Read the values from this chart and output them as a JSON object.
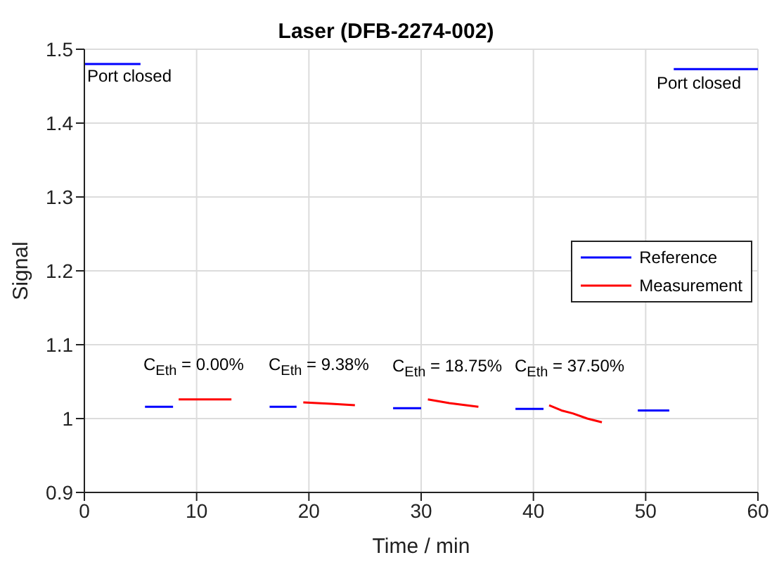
{
  "chart_data": {
    "type": "line",
    "title": "Laser (DFB-2274-002)",
    "xlabel": "Time / min",
    "ylabel": "Signal",
    "xlim": [
      0,
      60
    ],
    "xticks": [
      0,
      10,
      20,
      30,
      40,
      50,
      60
    ],
    "ylim": [
      0.9,
      1.5
    ],
    "yticks": [
      0.9,
      1,
      1.1,
      1.2,
      1.3,
      1.4,
      1.5
    ],
    "grid": true,
    "legend": "right",
    "marker": "none",
    "line_style": "solid",
    "series": [
      {
        "name": "Reference",
        "color": "#0000ff",
        "x": [
          0,
          5,
          5.2,
          5.4,
          7.9,
          12,
          16.5,
          18.9,
          23,
          27.5,
          30,
          34,
          38.4,
          40.9,
          45,
          49.3,
          52.1,
          52.3,
          52.5,
          60
        ],
        "values": [
          1.48,
          1.48,
          null,
          1.016,
          1.016,
          null,
          1.016,
          1.016,
          null,
          1.014,
          1.014,
          null,
          1.013,
          1.013,
          null,
          1.011,
          1.011,
          null,
          1.473,
          1.473
        ]
      },
      {
        "name": "Measurement",
        "color": "#ff0000",
        "x": [
          8.4,
          13.1,
          16,
          19.5,
          22,
          24.1,
          27,
          30.6,
          32.5,
          35.1,
          38,
          41.4,
          42.5,
          43.5,
          44.8,
          46.1
        ],
        "values": [
          1.026,
          1.026,
          null,
          1.022,
          1.02,
          1.018,
          null,
          1.026,
          1.021,
          1.016,
          null,
          1.018,
          1.011,
          1.007,
          1.0,
          0.995
        ]
      }
    ],
    "annotations": [
      "Port closed",
      "Port closed",
      "C$_{Eth}$ = 0.00%",
      "C$_{Eth}$ = 9.38%",
      "C$_{Eth}$ = 18.75%",
      "C$_{Eth}$ = 37.50%"
    ]
  }
}
